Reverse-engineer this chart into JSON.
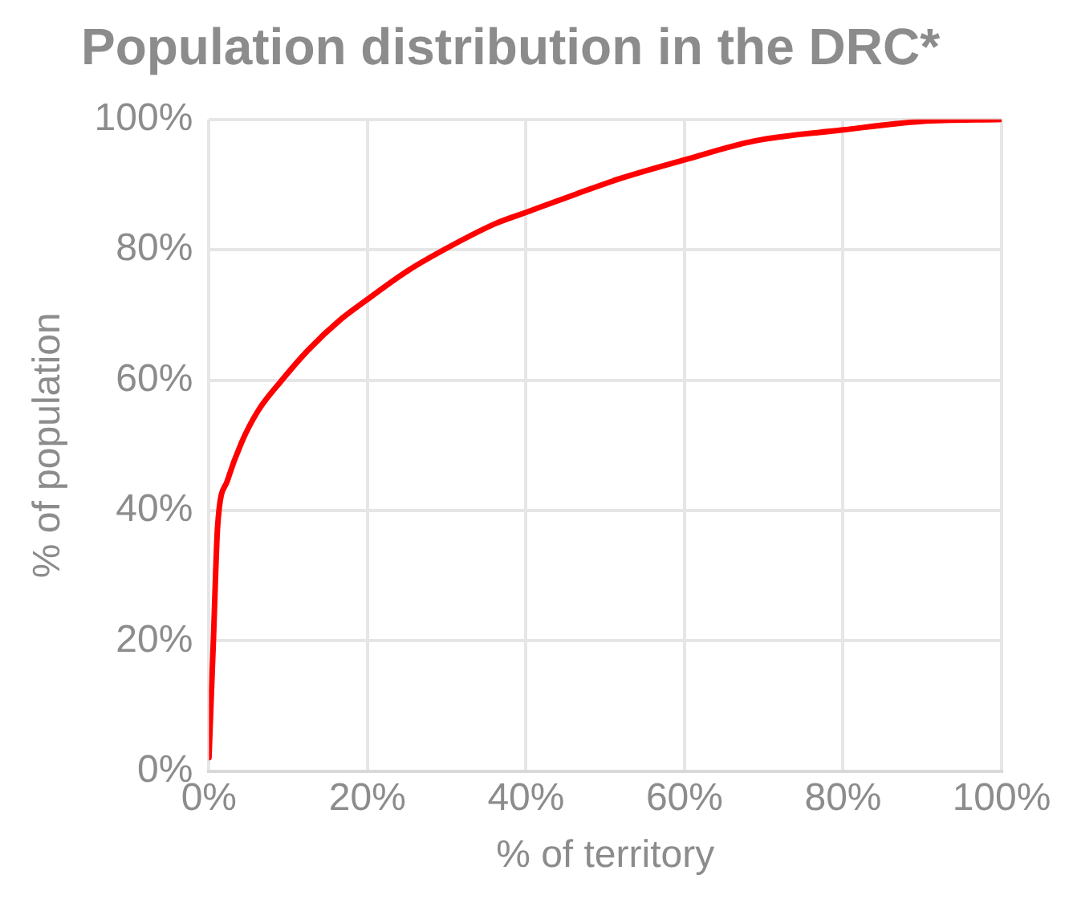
{
  "chart_data": {
    "type": "line",
    "title": "Population distribution in the DRC*",
    "xlabel": "% of territory",
    "ylabel": "% of population",
    "x": [
      0,
      0.56,
      1.1,
      2.3,
      4.1,
      6.2,
      9.0,
      12.5,
      16.7,
      20,
      25.1,
      30.7,
      36.3,
      39.9,
      46.2,
      51.8,
      60,
      68.8,
      80,
      89.9,
      100
    ],
    "series": [
      {
        "color": "#ff0000",
        "values": [
          2.1,
          20.1,
          37.7,
          44.5,
          50.4,
          55.3,
          59.7,
          64.6,
          69.4,
          72.4,
          76.8,
          80.7,
          84.1,
          85.7,
          88.5,
          90.9,
          93.8,
          96.7,
          98.4,
          99.7,
          100
        ]
      }
    ],
    "xlim": [
      0,
      100
    ],
    "xticks": [
      {
        "value": 0,
        "label": "0%"
      },
      {
        "value": 20,
        "label": "20%"
      },
      {
        "value": 40,
        "label": "40%"
      },
      {
        "value": 60,
        "label": "60%"
      },
      {
        "value": 80,
        "label": "80%"
      },
      {
        "value": 100,
        "label": "100%"
      }
    ],
    "ylim": [
      0,
      100
    ],
    "yticks": [
      {
        "value": 0,
        "label": "0%"
      },
      {
        "value": 20,
        "label": "20%"
      },
      {
        "value": 40,
        "label": "40%"
      },
      {
        "value": 60,
        "label": "60%"
      },
      {
        "value": 80,
        "label": "80%"
      },
      {
        "value": 100,
        "label": "100%"
      }
    ],
    "grid": true,
    "legend": false,
    "marker": "none",
    "line_style": "solid"
  }
}
